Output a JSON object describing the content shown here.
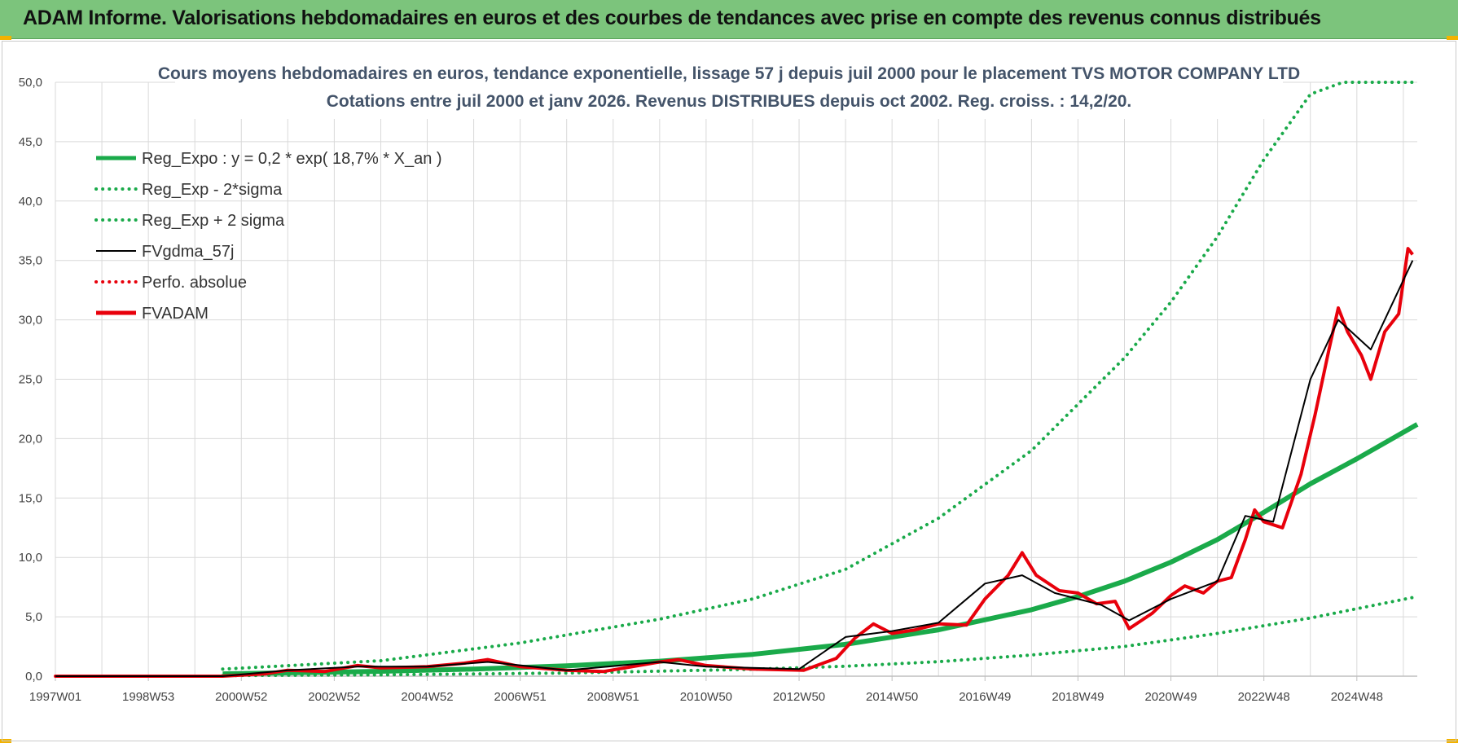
{
  "banner": {
    "title": "ADAM Informe. Valorisations hebdomadaires en euros et des courbes de tendances avec prise en compte des revenus connus distribués"
  },
  "colors": {
    "banner_bg": "#7cc47c",
    "trend_green": "#1aaa4a",
    "fvadam_red": "#e8000b",
    "fvgdma_black": "#000000",
    "grid": "#d9d9d9"
  },
  "chart_data": {
    "type": "line",
    "title": "Cours moyens hebdomadaires en euros, tendance exponentielle, lissage 57 j depuis juil 2000 pour le placement TVS MOTOR COMPANY LTD",
    "subtitle": "Cotations entre juil 2000 et janv 2026. Revenus DISTRIBUES depuis oct 2002. Reg. croiss. : 14,2/20.",
    "xlabel": "",
    "ylabel": "",
    "ylim": [
      0,
      50
    ],
    "y_ticks": [
      "0,0",
      "5,0",
      "10,0",
      "15,0",
      "20,0",
      "25,0",
      "30,0",
      "35,0",
      "40,0",
      "45,0",
      "50,0"
    ],
    "x_tick_labels": [
      "1997W01",
      "1998W53",
      "2000W52",
      "2002W52",
      "2004W52",
      "2006W51",
      "2008W51",
      "2010W50",
      "2012W50",
      "2014W50",
      "2016W49",
      "2018W49",
      "2020W49",
      "2022W48",
      "2024W48"
    ],
    "x_tick_years": [
      1997.0,
      1999.0,
      2001.0,
      2003.0,
      2005.0,
      2007.0,
      2009.0,
      2011.0,
      2013.0,
      2015.0,
      2017.0,
      2019.0,
      2021.0,
      2023.0,
      2025.0
    ],
    "x_range": [
      1997.0,
      2026.3
    ],
    "grid": true,
    "legend_position": "top-left",
    "series": [
      {
        "name": "Reg_Expo : y = 0,2 * exp( 18,7% *  X_an )",
        "style": "solid-thick",
        "color": "#1aaa4a",
        "x": [
          2000.6,
          2002,
          2004,
          2006,
          2008,
          2010,
          2012,
          2014,
          2016,
          2018,
          2019,
          2020,
          2021,
          2022,
          2023,
          2024,
          2025,
          2026.3
        ],
        "y": [
          0.2,
          0.28,
          0.41,
          0.6,
          0.87,
          1.26,
          1.84,
          2.68,
          3.9,
          5.6,
          6.7,
          8.0,
          9.6,
          11.5,
          13.8,
          16.2,
          18.3,
          21.2
        ]
      },
      {
        "name": "Reg_Exp - 2*sigma",
        "style": "dotted",
        "color": "#1aaa4a",
        "x": [
          2000.6,
          2004,
          2008,
          2012,
          2014,
          2016,
          2018,
          2020,
          2022,
          2024,
          2026.3
        ],
        "y": [
          0.05,
          0.12,
          0.27,
          0.58,
          0.84,
          1.22,
          1.78,
          2.5,
          3.6,
          4.9,
          6.7
        ]
      },
      {
        "name": "Reg_Exp + 2 sigma",
        "style": "dotted",
        "color": "#1aaa4a",
        "x": [
          2000.6,
          2004,
          2007,
          2010,
          2012,
          2014,
          2016,
          2018,
          2020,
          2021,
          2022,
          2023,
          2024,
          2024.7,
          2026.3
        ],
        "y": [
          0.6,
          1.3,
          2.8,
          4.8,
          6.5,
          9.0,
          13.3,
          19.0,
          26.8,
          31.5,
          37.0,
          43.5,
          49.0,
          50.0,
          50.0
        ]
      },
      {
        "name": "FVgdma_57j",
        "style": "solid",
        "color": "#000000",
        "x": [
          1997.0,
          2000.6,
          2002,
          2003.5,
          2005,
          2006.3,
          2008,
          2010,
          2011,
          2013,
          2014,
          2015,
          2016,
          2017,
          2017.8,
          2018.5,
          2019.5,
          2020.1,
          2021,
          2022,
          2022.6,
          2023.2,
          2024.0,
          2024.6,
          2025.3,
          2026.2
        ],
        "y": [
          0.0,
          0.0,
          0.5,
          0.8,
          0.8,
          1.2,
          0.5,
          1.2,
          0.8,
          0.6,
          3.3,
          3.8,
          4.5,
          7.8,
          8.5,
          7.0,
          6.0,
          4.7,
          6.5,
          8.0,
          13.5,
          13.0,
          25.0,
          30.0,
          27.5,
          35.0
        ]
      },
      {
        "name": "Perfo. absolue",
        "style": "dotted",
        "color": "#e8000b",
        "x": [
          1997.0,
          2000.6
        ],
        "y": [
          0.0,
          0.0
        ]
      },
      {
        "name": "FVADAM",
        "style": "solid-thick",
        "color": "#e8000b",
        "x": [
          1997.0,
          2000.6,
          2001.5,
          2002,
          2002.8,
          2003.5,
          2004,
          2005,
          2005.8,
          2006.3,
          2007,
          2008,
          2008.8,
          2010,
          2010.4,
          2011,
          2012,
          2013.1,
          2013.8,
          2014.2,
          2014.6,
          2015,
          2015.5,
          2016,
          2016.6,
          2017,
          2017.5,
          2017.8,
          2018.1,
          2018.6,
          2019,
          2019.4,
          2019.8,
          2020.1,
          2020.6,
          2021,
          2021.3,
          2021.7,
          2022,
          2022.3,
          2022.6,
          2022.8,
          2023.0,
          2023.4,
          2023.8,
          2024.1,
          2024.4,
          2024.6,
          2024.8,
          2025.1,
          2025.3,
          2025.6,
          2025.9,
          2026.1,
          2026.2
        ],
        "y": [
          0.0,
          0.0,
          0.2,
          0.5,
          0.4,
          0.9,
          0.7,
          0.8,
          1.1,
          1.4,
          0.8,
          0.5,
          0.4,
          1.2,
          1.4,
          0.9,
          0.6,
          0.5,
          1.5,
          3.2,
          4.4,
          3.6,
          3.9,
          4.4,
          4.3,
          6.5,
          8.5,
          10.4,
          8.5,
          7.2,
          7.0,
          6.1,
          6.3,
          4.0,
          5.3,
          6.8,
          7.6,
          7.0,
          8.0,
          8.3,
          11.5,
          14.0,
          13.0,
          12.5,
          17.0,
          22.0,
          27.5,
          31.0,
          29.0,
          27.0,
          25.0,
          29.0,
          30.5,
          36.0,
          35.5
        ]
      }
    ]
  }
}
